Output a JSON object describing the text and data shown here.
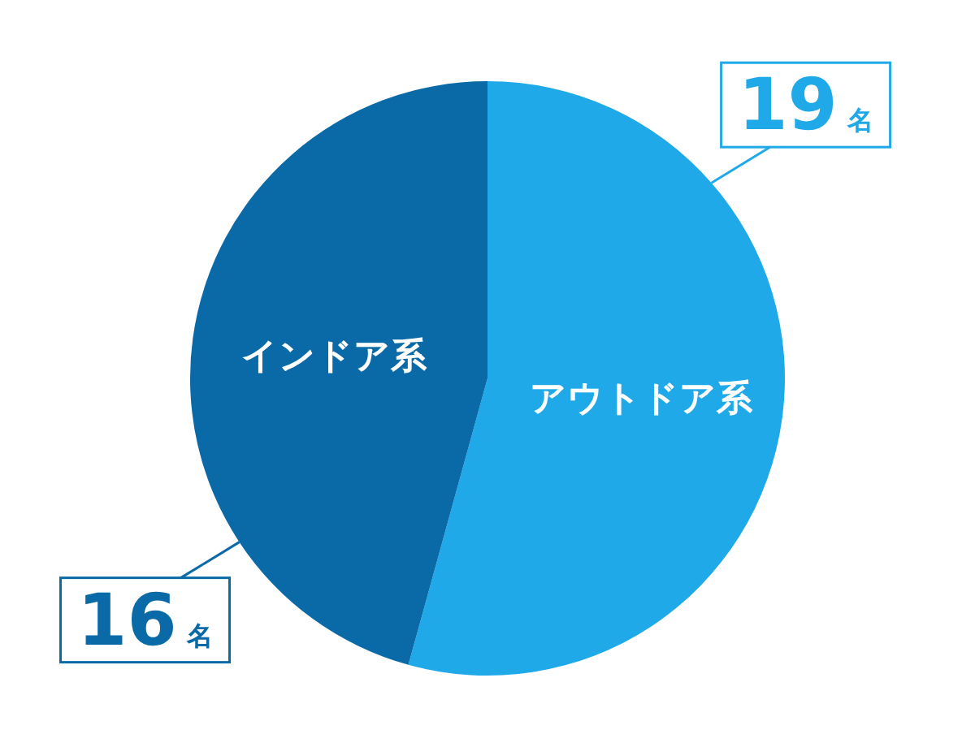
{
  "chart_data": {
    "type": "pie",
    "categories": [
      "アウトドア系",
      "インドア系"
    ],
    "values": [
      19,
      16
    ],
    "colors": [
      "#1fa9e8",
      "#0a6aa8"
    ],
    "value_labels": [
      "19名",
      "16名"
    ]
  }
}
